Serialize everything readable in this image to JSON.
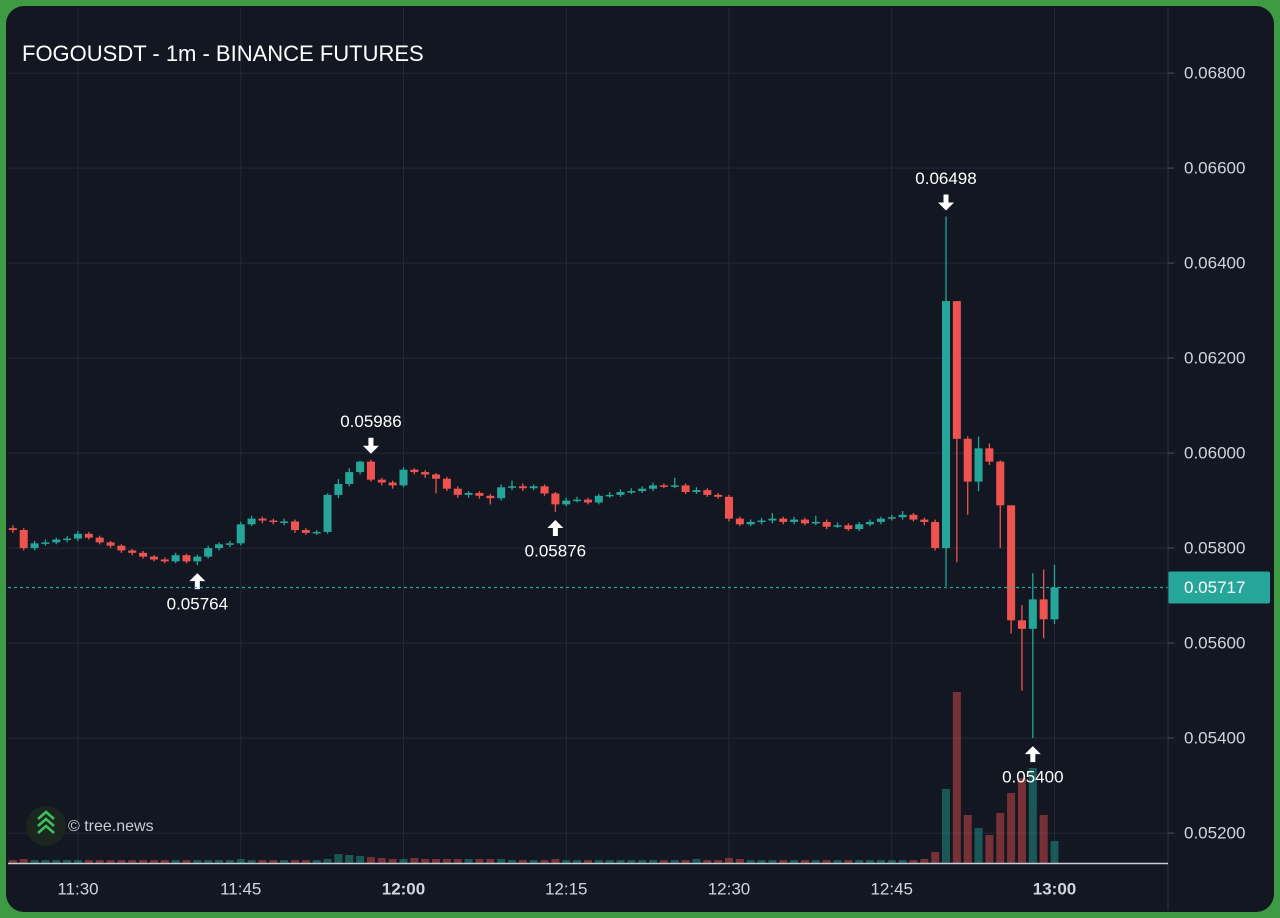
{
  "chart_data": {
    "type": "candlestick",
    "title": "FOGOUSDT - 1m - BINANCE FUTURES",
    "watermark": "© tree.news",
    "up_color": "#26a69a",
    "down_color": "#ef5350",
    "grid": true,
    "xlim": [
      683.55,
      790.46
    ],
    "xticks": [
      {
        "value": 690,
        "label": "11:30"
      },
      {
        "value": 705,
        "label": "11:45"
      },
      {
        "value": 720,
        "label": "12:00"
      },
      {
        "value": 735,
        "label": "12:15"
      },
      {
        "value": 750,
        "label": "12:30"
      },
      {
        "value": 765,
        "label": "12:45"
      },
      {
        "value": 780,
        "label": "13:00"
      }
    ],
    "ylim": [
      0.05137,
      0.06937
    ],
    "yticks": [
      {
        "value": 0.052,
        "label": "0.05200"
      },
      {
        "value": 0.054,
        "label": "0.05400"
      },
      {
        "value": 0.056,
        "label": "0.05600"
      },
      {
        "value": 0.058,
        "label": "0.05800"
      },
      {
        "value": 0.06,
        "label": "0.06000"
      },
      {
        "value": 0.062,
        "label": "0.06200"
      },
      {
        "value": 0.064,
        "label": "0.06400"
      },
      {
        "value": 0.066,
        "label": "0.06600"
      },
      {
        "value": 0.068,
        "label": "0.06800"
      }
    ],
    "x": [
      684,
      685,
      686,
      687,
      688,
      689,
      690,
      691,
      692,
      693,
      694,
      695,
      696,
      697,
      698,
      699,
      700,
      701,
      702,
      703,
      704,
      705,
      706,
      707,
      708,
      709,
      710,
      711,
      712,
      713,
      714,
      715,
      716,
      717,
      718,
      719,
      720,
      721,
      722,
      723,
      724,
      725,
      726,
      727,
      728,
      729,
      730,
      731,
      732,
      733,
      734,
      735,
      736,
      737,
      738,
      739,
      740,
      741,
      742,
      743,
      744,
      745,
      746,
      747,
      748,
      749,
      750,
      751,
      752,
      753,
      754,
      755,
      756,
      757,
      758,
      759,
      760,
      761,
      762,
      763,
      764,
      765,
      766,
      767,
      768,
      769,
      770,
      771,
      772,
      773,
      774,
      775,
      776,
      777,
      778,
      779,
      780
    ],
    "open": [
      0.05842,
      0.05838,
      0.058,
      0.0581,
      0.05812,
      0.05818,
      0.0582,
      0.0583,
      0.05822,
      0.05812,
      0.05805,
      0.05795,
      0.0579,
      0.05782,
      0.05776,
      0.05772,
      0.05785,
      0.05772,
      0.05782,
      0.058,
      0.05808,
      0.0581,
      0.0585,
      0.05862,
      0.05858,
      0.05855,
      0.05856,
      0.05838,
      0.05832,
      0.05834,
      0.05912,
      0.05935,
      0.0596,
      0.05982,
      0.05944,
      0.05938,
      0.05932,
      0.05965,
      0.0596,
      0.05955,
      0.05946,
      0.05925,
      0.05912,
      0.05916,
      0.0591,
      0.05905,
      0.05928,
      0.0593,
      0.05926,
      0.0593,
      0.05915,
      0.05892,
      0.059,
      0.05902,
      0.05896,
      0.0591,
      0.05912,
      0.05918,
      0.0592,
      0.05925,
      0.05932,
      0.0593,
      0.05932,
      0.05918,
      0.05922,
      0.05912,
      0.05908,
      0.05862,
      0.0585,
      0.05855,
      0.05858,
      0.05862,
      0.05855,
      0.0586,
      0.05852,
      0.05855,
      0.05845,
      0.05848,
      0.0584,
      0.0585,
      0.05855,
      0.05862,
      0.05865,
      0.0587,
      0.0586,
      0.05855,
      0.058,
      0.0632,
      0.0603,
      0.0594,
      0.0601,
      0.05982,
      0.0589,
      0.05648,
      0.0563,
      0.05692,
      0.0565
    ],
    "high": [
      0.05848,
      0.05842,
      0.05815,
      0.05818,
      0.05822,
      0.05825,
      0.05836,
      0.05834,
      0.05826,
      0.05815,
      0.05808,
      0.05798,
      0.05794,
      0.05785,
      0.0578,
      0.0579,
      0.05788,
      0.05786,
      0.05805,
      0.05812,
      0.05815,
      0.05855,
      0.05868,
      0.05866,
      0.05862,
      0.05862,
      0.0586,
      0.05842,
      0.05838,
      0.05915,
      0.05945,
      0.05968,
      0.05984,
      0.05986,
      0.05948,
      0.05942,
      0.0597,
      0.05968,
      0.05964,
      0.05958,
      0.0595,
      0.0593,
      0.0592,
      0.0592,
      0.05914,
      0.05934,
      0.05942,
      0.05936,
      0.05934,
      0.05934,
      0.05918,
      0.05906,
      0.05908,
      0.05906,
      0.05914,
      0.05918,
      0.05924,
      0.05926,
      0.0593,
      0.05938,
      0.05936,
      0.05948,
      0.05936,
      0.05928,
      0.05926,
      0.05916,
      0.05912,
      0.05866,
      0.0586,
      0.05864,
      0.05874,
      0.05866,
      0.05866,
      0.05864,
      0.05868,
      0.0586,
      0.05854,
      0.05852,
      0.05855,
      0.0586,
      0.05866,
      0.0587,
      0.05878,
      0.05874,
      0.05864,
      0.0586,
      0.06498,
      0.0632,
      0.06035,
      0.06035,
      0.0602,
      0.05985,
      0.0589,
      0.0568,
      0.05747,
      0.05755,
      0.05765
    ],
    "low": [
      0.05832,
      0.05795,
      0.05795,
      0.05805,
      0.05808,
      0.05812,
      0.05815,
      0.05818,
      0.05808,
      0.058,
      0.0579,
      0.05785,
      0.05778,
      0.05772,
      0.05768,
      0.05768,
      0.05768,
      0.05764,
      0.05778,
      0.05795,
      0.05802,
      0.05806,
      0.05846,
      0.05852,
      0.0585,
      0.05848,
      0.05832,
      0.05828,
      0.05828,
      0.0583,
      0.05905,
      0.0593,
      0.05955,
      0.0594,
      0.05932,
      0.05925,
      0.05928,
      0.05955,
      0.05948,
      0.05915,
      0.0592,
      0.05906,
      0.05906,
      0.05904,
      0.05892,
      0.059,
      0.05922,
      0.0592,
      0.05922,
      0.0591,
      0.05876,
      0.05888,
      0.05896,
      0.05892,
      0.05892,
      0.05906,
      0.05908,
      0.05914,
      0.05916,
      0.0592,
      0.05926,
      0.05926,
      0.05914,
      0.05914,
      0.05908,
      0.05904,
      0.05856,
      0.05846,
      0.05846,
      0.0585,
      0.05852,
      0.0585,
      0.0585,
      0.05848,
      0.05848,
      0.0584,
      0.05842,
      0.05836,
      0.05836,
      0.05846,
      0.0585,
      0.05858,
      0.0586,
      0.05856,
      0.05848,
      0.05795,
      0.0572,
      0.0577,
      0.0587,
      0.0592,
      0.05975,
      0.058,
      0.0562,
      0.055,
      0.054,
      0.0561,
      0.0564
    ],
    "close": [
      0.05838,
      0.058,
      0.0581,
      0.05812,
      0.05818,
      0.0582,
      0.0583,
      0.05822,
      0.05812,
      0.05805,
      0.05795,
      0.0579,
      0.05782,
      0.05776,
      0.05772,
      0.05785,
      0.05772,
      0.05782,
      0.058,
      0.05808,
      0.0581,
      0.0585,
      0.05862,
      0.05858,
      0.05855,
      0.05856,
      0.05838,
      0.05832,
      0.05834,
      0.05912,
      0.05935,
      0.0596,
      0.05982,
      0.05944,
      0.05938,
      0.05932,
      0.05965,
      0.0596,
      0.05955,
      0.05946,
      0.05925,
      0.05912,
      0.05916,
      0.0591,
      0.05905,
      0.05928,
      0.0593,
      0.05926,
      0.0593,
      0.05915,
      0.05892,
      0.059,
      0.05902,
      0.05896,
      0.0591,
      0.05912,
      0.05918,
      0.0592,
      0.05925,
      0.05932,
      0.0593,
      0.05932,
      0.05918,
      0.05922,
      0.05912,
      0.05908,
      0.05862,
      0.0585,
      0.05855,
      0.05858,
      0.05862,
      0.05855,
      0.0586,
      0.05852,
      0.05855,
      0.05845,
      0.05848,
      0.0584,
      0.0585,
      0.05855,
      0.05862,
      0.05865,
      0.0587,
      0.0586,
      0.05855,
      0.058,
      0.0632,
      0.0603,
      0.0594,
      0.0601,
      0.05982,
      0.0589,
      0.05648,
      0.0563,
      0.05692,
      0.0565,
      0.05717
    ],
    "volume": [
      3,
      4,
      3,
      3,
      3,
      3,
      3,
      3,
      3,
      3,
      3,
      3,
      3,
      3,
      3,
      3,
      3,
      3,
      3,
      3,
      3,
      4,
      3,
      3,
      3,
      3,
      3,
      3,
      3,
      4,
      9,
      8,
      7,
      6,
      5,
      4,
      4,
      5,
      4,
      4,
      4,
      4,
      4,
      4,
      4,
      4,
      3,
      3,
      3,
      3,
      4,
      3,
      3,
      3,
      3,
      3,
      3,
      3,
      3,
      3,
      3,
      3,
      3,
      4,
      3,
      3,
      5,
      4,
      3,
      3,
      3,
      3,
      3,
      3,
      3,
      3,
      3,
      3,
      3,
      3,
      3,
      3,
      3,
      3,
      4,
      11,
      74,
      171,
      48,
      35,
      28,
      50,
      70,
      85,
      95,
      48,
      22
    ],
    "annotations": [
      {
        "x": 717,
        "value": 0.05986,
        "label": "0.05986"
      },
      {
        "x": 701,
        "value": 0.05764,
        "label": "0.05764"
      },
      {
        "x": 734,
        "value": 0.05876,
        "label": "0.05876"
      },
      {
        "x": 770,
        "value": 0.06498,
        "label": "0.06498"
      },
      {
        "x": 778,
        "value": 0.054,
        "label": "0.05400"
      }
    ],
    "last_price": {
      "value": 0.05717,
      "label": "0.05717",
      "color": "#26a69a"
    }
  }
}
